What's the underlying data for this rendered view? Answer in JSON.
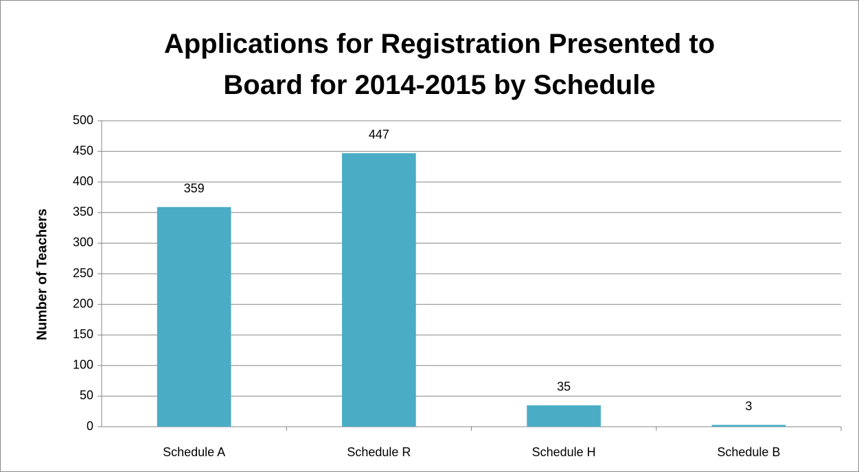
{
  "chart_data": {
    "type": "bar",
    "title": "Applications for Registration Presented to Board for 2014-2015 by Schedule",
    "y_label": "Number of Teachers",
    "categories": [
      "Schedule A",
      "Schedule R",
      "Schedule H",
      "Schedule B"
    ],
    "values": [
      359,
      447,
      35,
      3
    ],
    "color": "#4bacc6",
    "ylim": [
      0,
      500
    ],
    "yticks": [
      0,
      50,
      100,
      150,
      200,
      250,
      300,
      350,
      400,
      450,
      500
    ],
    "grid": true
  }
}
